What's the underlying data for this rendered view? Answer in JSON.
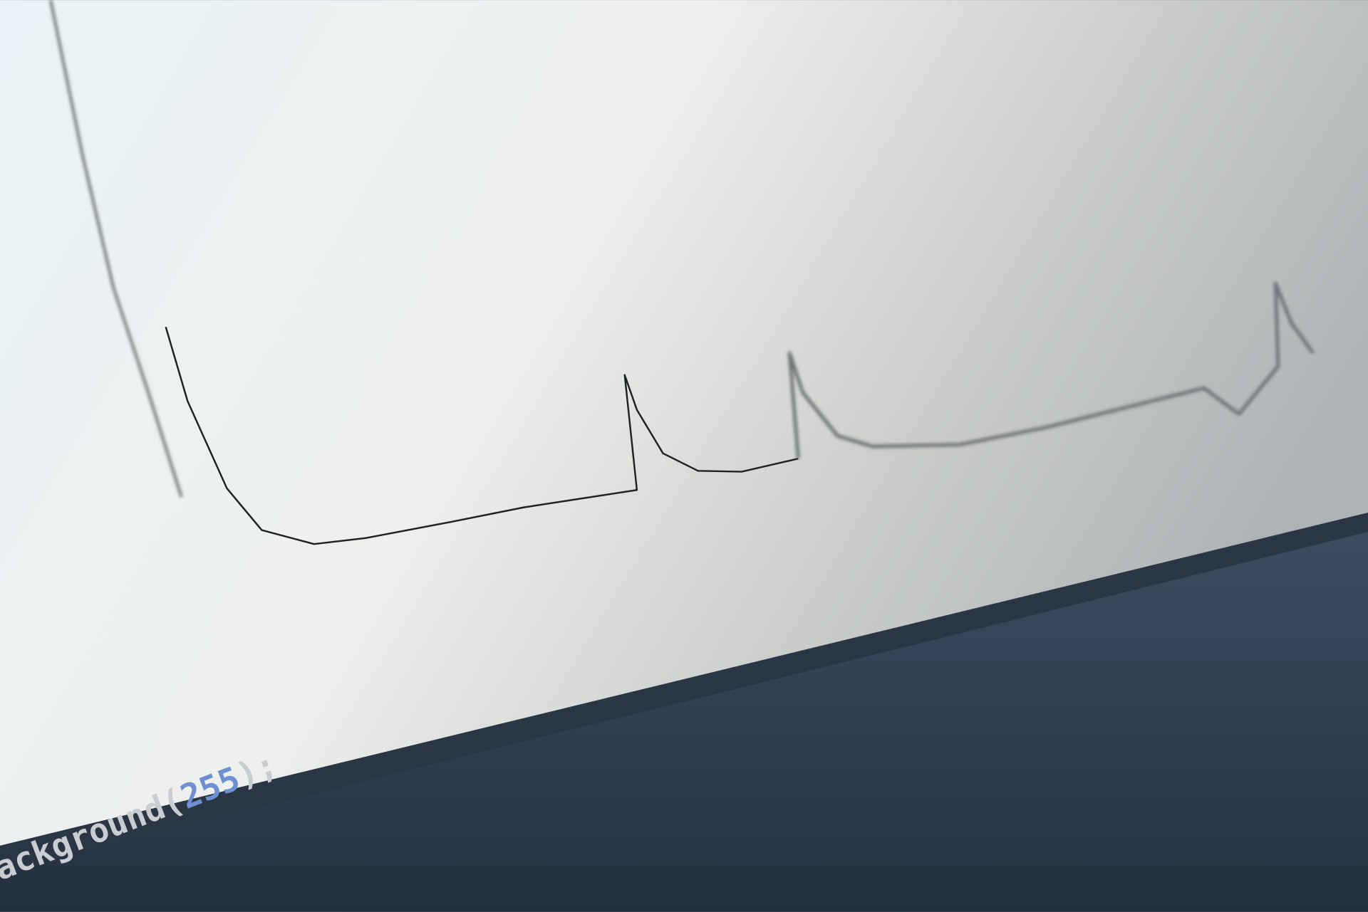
{
  "code_line": {
    "tokens": [
      "ackground(",
      "255",
      ");"
    ]
  }
}
